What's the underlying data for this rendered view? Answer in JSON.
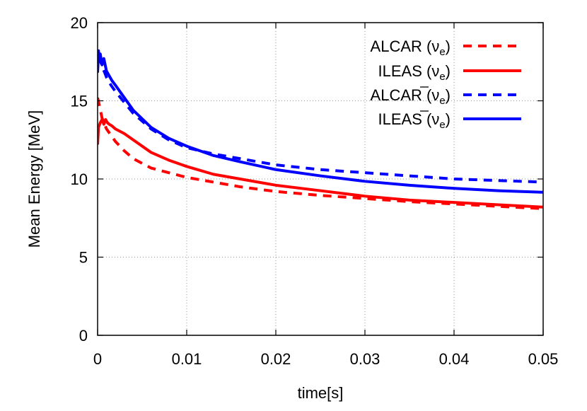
{
  "chart_data": {
    "type": "line",
    "xlabel": "time[s]",
    "ylabel": "Mean Energy [MeV]",
    "xlim": [
      0,
      0.05
    ],
    "ylim": [
      0,
      20
    ],
    "xticks": [
      0,
      0.01,
      0.02,
      0.03,
      0.04,
      0.05
    ],
    "xtick_labels": [
      "0",
      "0.01",
      "0.02",
      "0.03",
      "0.04",
      "0.05"
    ],
    "yticks": [
      0,
      5,
      10,
      15,
      20
    ],
    "ytick_labels": [
      "0",
      "5",
      "10",
      "15",
      "20"
    ],
    "grid": true,
    "legend_position": "top-right",
    "series": [
      {
        "name": "ALCAR (ν",
        "name_sub": "e",
        "name_close": ")",
        "color": "#ff0000",
        "dash": "dashed",
        "x": [
          0,
          0.0002,
          0.0005,
          0.001,
          0.002,
          0.003,
          0.004,
          0.006,
          0.008,
          0.01,
          0.013,
          0.016,
          0.02,
          0.025,
          0.03,
          0.035,
          0.04,
          0.045,
          0.05
        ],
        "y": [
          15.2,
          14.7,
          13.9,
          13.2,
          12.4,
          11.8,
          11.3,
          10.7,
          10.4,
          10.1,
          9.8,
          9.5,
          9.2,
          8.95,
          8.75,
          8.55,
          8.4,
          8.25,
          8.1
        ]
      },
      {
        "name": "ILEAS (ν",
        "name_sub": "e",
        "name_close": ")",
        "color": "#ff0000",
        "dash": "solid",
        "x": [
          0,
          0.0001,
          0.0003,
          0.0005,
          0.0007,
          0.0009,
          0.0011,
          0.0013,
          0.0016,
          0.002,
          0.003,
          0.004,
          0.006,
          0.008,
          0.01,
          0.013,
          0.016,
          0.02,
          0.025,
          0.03,
          0.035,
          0.04,
          0.045,
          0.05
        ],
        "y": [
          12.2,
          13.3,
          13.6,
          13.8,
          13.5,
          13.8,
          13.6,
          13.5,
          13.4,
          13.2,
          12.9,
          12.5,
          11.7,
          11.2,
          10.8,
          10.3,
          10.0,
          9.6,
          9.25,
          8.9,
          8.65,
          8.5,
          8.35,
          8.2
        ]
      },
      {
        "name": "ALCAR (ν",
        "name_sub": "e",
        "name_close": ")",
        "name_bar": true,
        "color": "#0000ff",
        "dash": "dashed",
        "x": [
          0,
          0.0001,
          0.0003,
          0.0005,
          0.0008,
          0.001,
          0.0015,
          0.002,
          0.003,
          0.004,
          0.006,
          0.008,
          0.01,
          0.013,
          0.016,
          0.02,
          0.025,
          0.03,
          0.035,
          0.04,
          0.045,
          0.05
        ],
        "y": [
          17.0,
          17.9,
          17.6,
          17.2,
          16.8,
          16.5,
          16.0,
          15.6,
          14.9,
          14.2,
          13.2,
          12.5,
          12.0,
          11.6,
          11.3,
          10.9,
          10.6,
          10.4,
          10.2,
          10.0,
          9.9,
          9.8
        ]
      },
      {
        "name": "ILEAS (ν",
        "name_sub": "e",
        "name_close": ")",
        "name_bar": true,
        "color": "#0000ff",
        "dash": "solid",
        "x": [
          0,
          0.0001,
          0.0002,
          0.0003,
          0.0005,
          0.0007,
          0.001,
          0.0013,
          0.0016,
          0.002,
          0.003,
          0.004,
          0.006,
          0.008,
          0.01,
          0.013,
          0.016,
          0.02,
          0.025,
          0.03,
          0.035,
          0.04,
          0.045,
          0.05
        ],
        "y": [
          16.8,
          18.2,
          17.6,
          18.0,
          17.3,
          17.7,
          16.9,
          16.6,
          16.3,
          16.0,
          15.2,
          14.4,
          13.3,
          12.6,
          12.1,
          11.5,
          11.1,
          10.6,
          10.2,
          9.85,
          9.6,
          9.4,
          9.25,
          9.15
        ]
      }
    ]
  }
}
